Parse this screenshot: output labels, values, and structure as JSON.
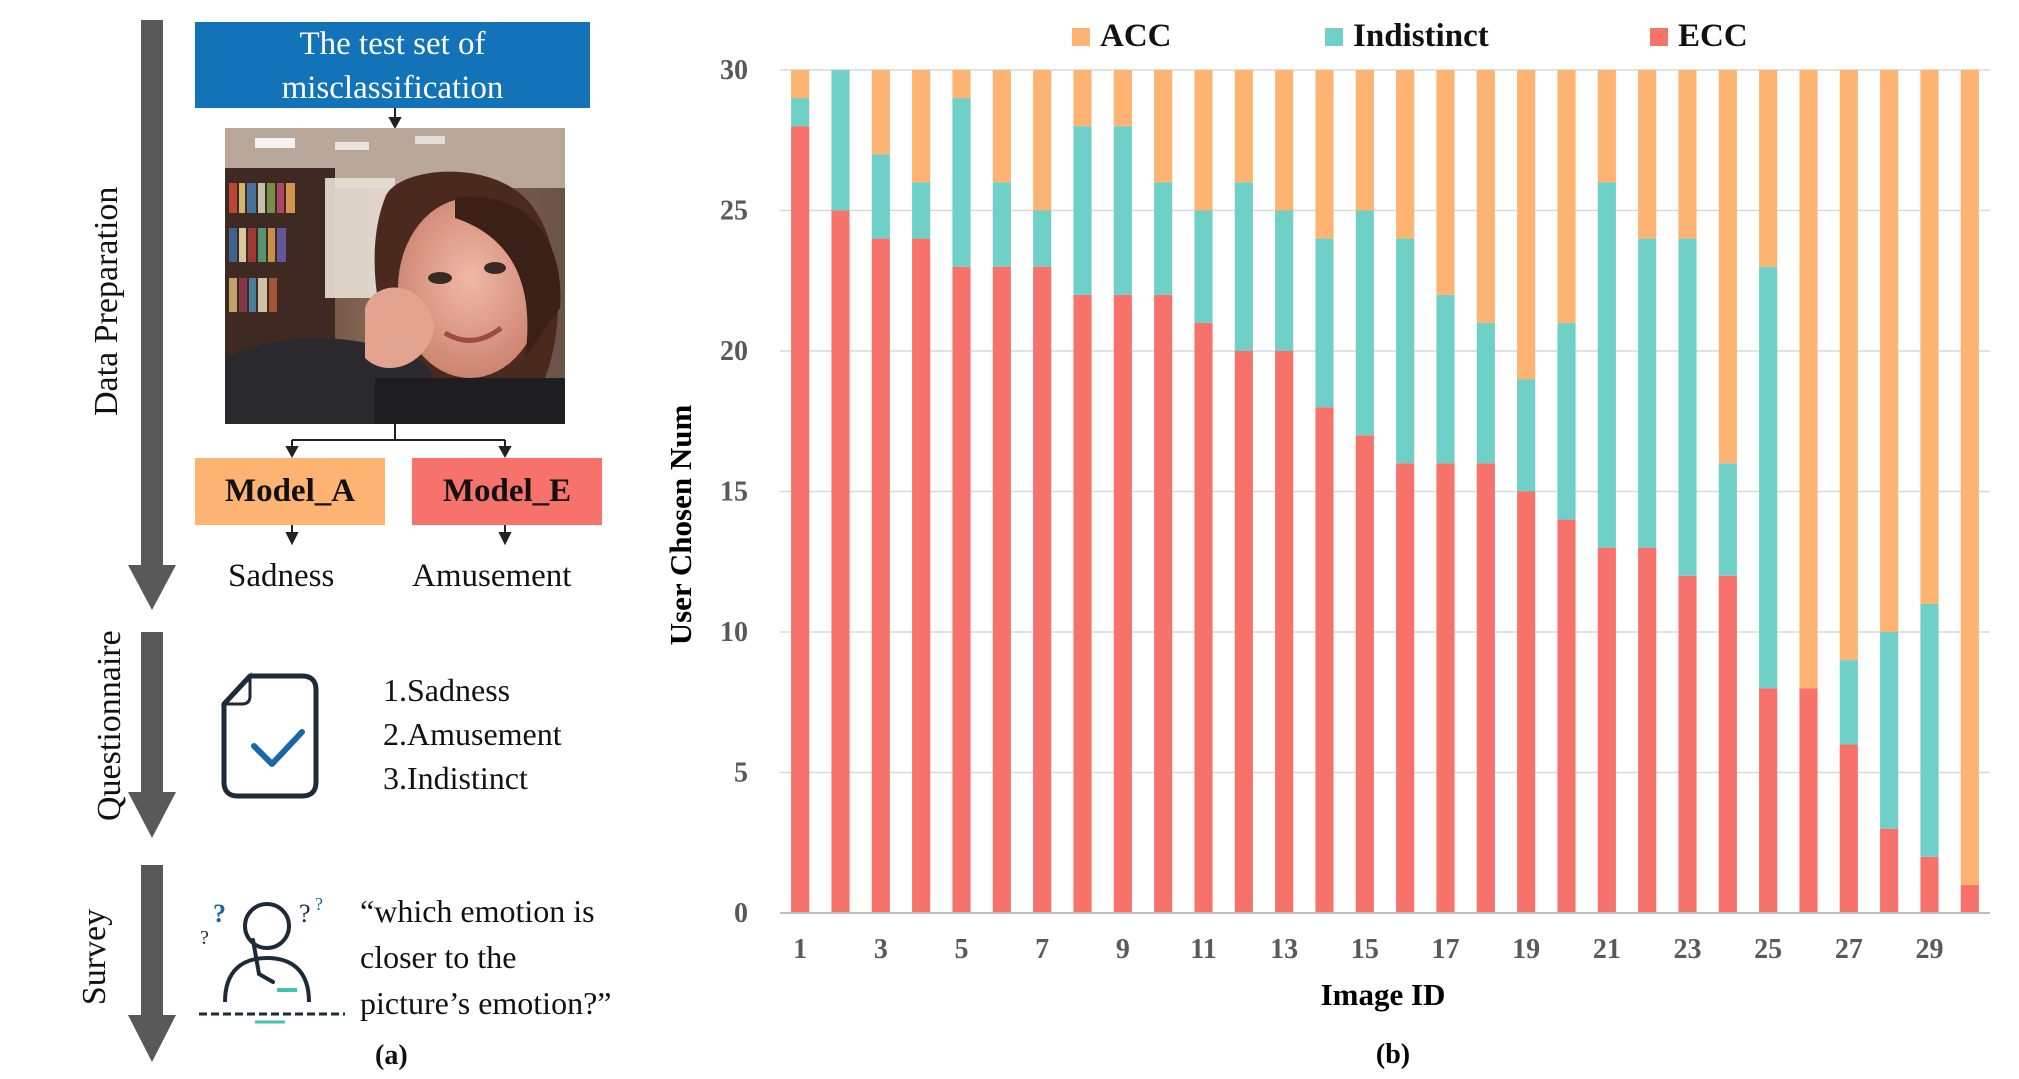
{
  "panel_a": {
    "stages": [
      "Data Preparation",
      "Questionnaire",
      "Survey"
    ],
    "test_set_label": "The test set of misclassification",
    "model_a": "Model_A",
    "model_e": "Model_E",
    "output_a": "Sadness",
    "output_e": "Amusement",
    "options": [
      "1.Sadness",
      "2.Amusement",
      "3.Indistinct"
    ],
    "survey_question": [
      "“which emotion is",
      "closer to the",
      "picture’s emotion?”"
    ],
    "caption": "(a)",
    "colors": {
      "box_blue": "#1273b8",
      "model_a": "#fdb372",
      "model_e": "#f8726c",
      "arrow": "#595959",
      "icon": "#1a66a6"
    }
  },
  "chart_data": {
    "type": "bar",
    "stacked": true,
    "caption": "(b)",
    "xlabel": "Image ID",
    "ylabel": "User Chosen Num",
    "ylim": [
      0,
      30
    ],
    "yticks": [
      0,
      5,
      10,
      15,
      20,
      25,
      30
    ],
    "grid": true,
    "legend_position": "top",
    "categories": [
      1,
      2,
      3,
      4,
      5,
      6,
      7,
      8,
      9,
      10,
      11,
      12,
      13,
      14,
      15,
      16,
      17,
      18,
      19,
      20,
      21,
      22,
      23,
      24,
      25,
      26,
      27,
      28,
      29,
      30
    ],
    "xtick_labels": [
      "1",
      "3",
      "5",
      "7",
      "9",
      "11",
      "13",
      "15",
      "17",
      "19",
      "21",
      "23",
      "25",
      "27",
      "29"
    ],
    "series": [
      {
        "name": "ECC",
        "color": "#f8726c",
        "values": [
          28,
          25,
          24,
          24,
          23,
          23,
          23,
          22,
          22,
          22,
          21,
          20,
          20,
          18,
          17,
          16,
          16,
          16,
          15,
          14,
          13,
          13,
          12,
          12,
          8,
          8,
          6,
          3,
          2,
          1
        ]
      },
      {
        "name": "Indistinct",
        "color": "#6fd0c8",
        "values": [
          1,
          5,
          3,
          2,
          6,
          3,
          2,
          6,
          6,
          4,
          4,
          6,
          5,
          6,
          8,
          8,
          6,
          5,
          4,
          7,
          13,
          11,
          12,
          4,
          15,
          0,
          3,
          7,
          9,
          0
        ]
      },
      {
        "name": "ACC",
        "color": "#fdb372",
        "values": [
          1,
          0,
          3,
          4,
          1,
          4,
          5,
          2,
          2,
          4,
          5,
          4,
          5,
          6,
          5,
          6,
          8,
          9,
          11,
          9,
          4,
          6,
          6,
          14,
          7,
          22,
          21,
          20,
          19,
          29
        ]
      }
    ],
    "legend_order": [
      "ACC",
      "Indistinct",
      "ECC"
    ]
  }
}
